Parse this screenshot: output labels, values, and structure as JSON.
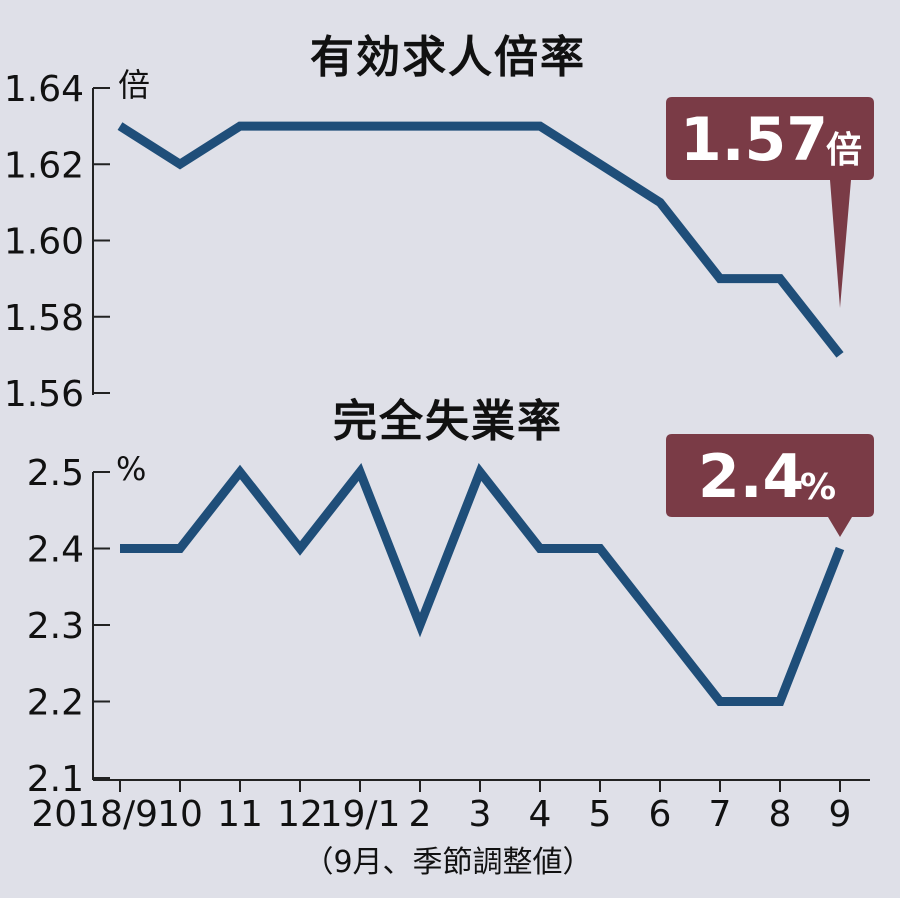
{
  "chart_data": [
    {
      "type": "line",
      "title": "有効求人倍率",
      "unit": "倍",
      "x": [
        "2018/9",
        "10",
        "11",
        "12",
        "19/1",
        "2",
        "3",
        "4",
        "5",
        "6",
        "7",
        "8",
        "9"
      ],
      "values": [
        1.63,
        1.62,
        1.63,
        1.63,
        1.63,
        1.63,
        1.63,
        1.63,
        1.62,
        1.61,
        1.59,
        1.59,
        1.57
      ],
      "ylim": [
        1.56,
        1.64
      ],
      "yticks": [
        "1.64",
        "1.62",
        "1.60",
        "1.58",
        "1.56"
      ],
      "callout_value": "1.57",
      "callout_unit": "倍",
      "color": "#1f4e79"
    },
    {
      "type": "line",
      "title": "完全失業率",
      "unit": "%",
      "x": [
        "2018/9",
        "10",
        "11",
        "12",
        "19/1",
        "2",
        "3",
        "4",
        "5",
        "6",
        "7",
        "8",
        "9"
      ],
      "values": [
        2.4,
        2.4,
        2.5,
        2.4,
        2.5,
        2.3,
        2.5,
        2.4,
        2.4,
        2.3,
        2.2,
        2.2,
        2.4
      ],
      "ylim": [
        2.1,
        2.5
      ],
      "yticks": [
        "2.5",
        "2.4",
        "2.3",
        "2.2",
        "2.1"
      ],
      "callout_value": "2.4",
      "callout_unit": "%",
      "color": "#1f4e79"
    }
  ],
  "note": "（9月、季節調整値）",
  "callout_color": "#7a3b46"
}
